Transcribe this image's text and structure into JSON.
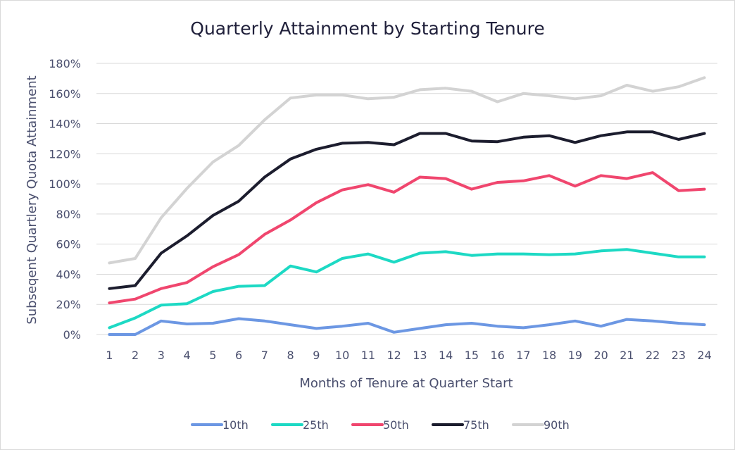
{
  "chart_data": {
    "type": "line",
    "title": "Quarterly Attainment by Starting Tenure",
    "xlabel": "Months of Tenure at Quarter Start",
    "ylabel": "Subseqent Quartlery Quota Attainment",
    "x": [
      1,
      2,
      3,
      4,
      5,
      6,
      7,
      8,
      9,
      10,
      11,
      12,
      13,
      14,
      15,
      16,
      17,
      18,
      19,
      20,
      21,
      22,
      23,
      24
    ],
    "ylim": [
      0,
      1.8
    ],
    "yticks": [
      0,
      0.2,
      0.4,
      0.6,
      0.8,
      1.0,
      1.2,
      1.4,
      1.6,
      1.8
    ],
    "ytick_labels": [
      "0%",
      "20%",
      "40%",
      "60%",
      "80%",
      "100%",
      "120%",
      "140%",
      "160%",
      "180%"
    ],
    "grid": true,
    "legend": "bottom",
    "series": [
      {
        "name": "10th",
        "color": "#6c97e3",
        "values": [
          0.0,
          0.0,
          0.09,
          0.07,
          0.075,
          0.105,
          0.09,
          0.065,
          0.04,
          0.055,
          0.075,
          0.015,
          0.04,
          0.065,
          0.075,
          0.055,
          0.045,
          0.065,
          0.09,
          0.055,
          0.1,
          0.09,
          0.075,
          0.065
        ]
      },
      {
        "name": "25th",
        "color": "#1dd9c4",
        "values": [
          0.045,
          0.11,
          0.195,
          0.205,
          0.285,
          0.32,
          0.325,
          0.455,
          0.415,
          0.505,
          0.535,
          0.48,
          0.54,
          0.55,
          0.525,
          0.535,
          0.535,
          0.53,
          0.535,
          0.555,
          0.565,
          0.54,
          0.515,
          0.515
        ]
      },
      {
        "name": "50th",
        "color": "#f0466e",
        "values": [
          0.21,
          0.235,
          0.305,
          0.345,
          0.45,
          0.53,
          0.665,
          0.76,
          0.875,
          0.96,
          0.995,
          0.945,
          1.045,
          1.035,
          0.965,
          1.01,
          1.02,
          1.055,
          0.985,
          1.055,
          1.035,
          1.075,
          0.955,
          0.965
        ]
      },
      {
        "name": "75th",
        "color": "#1c1d2e",
        "values": [
          0.305,
          0.325,
          0.54,
          0.655,
          0.79,
          0.885,
          1.045,
          1.165,
          1.23,
          1.27,
          1.275,
          1.26,
          1.335,
          1.335,
          1.285,
          1.28,
          1.31,
          1.32,
          1.275,
          1.32,
          1.345,
          1.345,
          1.295,
          1.335
        ]
      },
      {
        "name": "90th",
        "color": "#d3d3d3",
        "values": [
          0.475,
          0.505,
          0.775,
          0.97,
          1.145,
          1.255,
          1.425,
          1.57,
          1.59,
          1.59,
          1.565,
          1.575,
          1.625,
          1.635,
          1.615,
          1.545,
          1.6,
          1.585,
          1.565,
          1.585,
          1.655,
          1.615,
          1.645,
          1.705
        ]
      }
    ]
  }
}
